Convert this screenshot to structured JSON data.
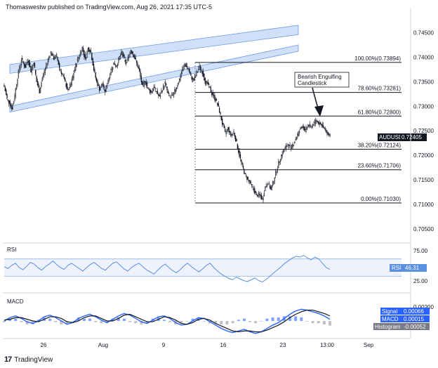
{
  "header": {
    "text": "Thomaswestw published on TradingView.com, Aug 26, 2021 17:35 UTC-5"
  },
  "footer": {
    "logo": "17",
    "brand": "TradingView"
  },
  "colors": {
    "candle": "#131722",
    "channel_fill": "#bbd3f5",
    "channel_line": "#6f9be6",
    "fib_line": "#131722",
    "rsi_line": "#5b8fe0",
    "rsi_band": "#a3bff0",
    "macd_line": "#2962ff",
    "signal_line": "#131722",
    "hist_pos": "#2962ff",
    "hist_neg": "#9598a1",
    "badge_dark": "#131722",
    "badge_blue": "#2962ff",
    "badge_gray": "#787b86"
  },
  "chart_data": {
    "type": "candlestick",
    "symbol": "AUDUSD",
    "last_price": "0.72405",
    "x_ticks": [
      "26",
      "Aug",
      "9",
      "16",
      "23",
      "13:00",
      "Sep"
    ],
    "y_ticks": [
      "0.74500",
      "0.74000",
      "0.73500",
      "0.73000",
      "0.72500",
      "0.72000",
      "0.71500",
      "0.71000",
      "0.70500"
    ],
    "ylim": [
      0.703,
      0.7485
    ],
    "close_path": [
      [
        0,
        0.734
      ],
      [
        3,
        0.7315
      ],
      [
        6,
        0.7305
      ],
      [
        8,
        0.7296
      ],
      [
        10,
        0.731
      ],
      [
        12,
        0.7335
      ],
      [
        15,
        0.737
      ],
      [
        18,
        0.7395
      ],
      [
        22,
        0.738
      ],
      [
        25,
        0.7395
      ],
      [
        28,
        0.7372
      ],
      [
        31,
        0.739
      ],
      [
        34,
        0.735
      ],
      [
        37,
        0.733
      ],
      [
        40,
        0.7358
      ],
      [
        43,
        0.7375
      ],
      [
        46,
        0.7395
      ],
      [
        49,
        0.741
      ],
      [
        52,
        0.7398
      ],
      [
        55,
        0.7402
      ],
      [
        58,
        0.7378
      ],
      [
        61,
        0.7365
      ],
      [
        64,
        0.7348
      ],
      [
        67,
        0.7332
      ],
      [
        70,
        0.7345
      ],
      [
        73,
        0.7368
      ],
      [
        76,
        0.739
      ],
      [
        79,
        0.7405
      ],
      [
        82,
        0.742
      ],
      [
        85,
        0.7395
      ],
      [
        88,
        0.7418
      ],
      [
        91,
        0.741
      ],
      [
        94,
        0.7375
      ],
      [
        97,
        0.735
      ],
      [
        100,
        0.7335
      ],
      [
        103,
        0.7345
      ],
      [
        106,
        0.733
      ],
      [
        109,
        0.7352
      ],
      [
        112,
        0.7372
      ],
      [
        115,
        0.7388
      ],
      [
        118,
        0.7382
      ],
      [
        121,
        0.74
      ],
      [
        124,
        0.741
      ],
      [
        127,
        0.7388
      ],
      [
        130,
        0.7398
      ],
      [
        133,
        0.7415
      ],
      [
        136,
        0.7403
      ],
      [
        139,
        0.7388
      ],
      [
        142,
        0.737
      ],
      [
        145,
        0.734
      ],
      [
        148,
        0.7352
      ],
      [
        151,
        0.7335
      ],
      [
        154,
        0.7328
      ],
      [
        157,
        0.734
      ],
      [
        160,
        0.733
      ],
      [
        163,
        0.7318
      ],
      [
        166,
        0.7335
      ],
      [
        169,
        0.7348
      ],
      [
        172,
        0.7325
      ],
      [
        175,
        0.7318
      ],
      [
        178,
        0.7326
      ],
      [
        181,
        0.734
      ],
      [
        184,
        0.7355
      ],
      [
        187,
        0.7375
      ],
      [
        190,
        0.7385
      ],
      [
        193,
        0.7378
      ],
      [
        196,
        0.736
      ],
      [
        199,
        0.7352
      ],
      [
        202,
        0.7368
      ],
      [
        205,
        0.738
      ],
      [
        208,
        0.737
      ],
      [
        211,
        0.735
      ],
      [
        214,
        0.7345
      ],
      [
        217,
        0.733
      ],
      [
        220,
        0.732
      ],
      [
        223,
        0.731
      ],
      [
        226,
        0.729
      ],
      [
        229,
        0.7265
      ],
      [
        232,
        0.7245
      ],
      [
        235,
        0.7255
      ],
      [
        238,
        0.724
      ],
      [
        241,
        0.7248
      ],
      [
        244,
        0.7225
      ],
      [
        247,
        0.72
      ],
      [
        250,
        0.7178
      ],
      [
        253,
        0.716
      ],
      [
        256,
        0.715
      ],
      [
        259,
        0.714
      ],
      [
        262,
        0.713
      ],
      [
        265,
        0.7118
      ],
      [
        268,
        0.712
      ],
      [
        271,
        0.711
      ],
      [
        274,
        0.7135
      ],
      [
        277,
        0.7145
      ],
      [
        280,
        0.713
      ],
      [
        283,
        0.715
      ],
      [
        286,
        0.717
      ],
      [
        289,
        0.719
      ],
      [
        292,
        0.7205
      ],
      [
        295,
        0.7215
      ],
      [
        298,
        0.7222
      ],
      [
        301,
        0.7215
      ],
      [
        304,
        0.7225
      ],
      [
        307,
        0.7238
      ],
      [
        310,
        0.725
      ],
      [
        313,
        0.726
      ],
      [
        316,
        0.725
      ],
      [
        319,
        0.7262
      ],
      [
        322,
        0.7258
      ],
      [
        325,
        0.7265
      ],
      [
        328,
        0.7272
      ],
      [
        331,
        0.7265
      ],
      [
        334,
        0.726
      ],
      [
        337,
        0.725
      ],
      [
        340,
        0.7245
      ],
      [
        342,
        0.724
      ]
    ],
    "channel_upper": {
      "lower_start": [
        0.7367,
        0.7385
      ],
      "lower_end": [
        0.7446,
        0.7465
      ],
      "start_x": 0,
      "end_x": 418
    },
    "channel_lower": {
      "lower_start": [
        0.7288,
        0.73
      ],
      "lower_end": [
        0.7412,
        0.7425
      ],
      "start_x": 0,
      "end_x": 418
    },
    "fib_levels": [
      {
        "label": "100.00%(0.73894)",
        "value": 0.73894
      },
      {
        "label": "78.60%(0.73281)",
        "value": 0.73281
      },
      {
        "label": "61.80%(0.72800)",
        "value": 0.728
      },
      {
        "label": "38.20%(0.72124)",
        "value": 0.72124
      },
      {
        "label": "23.60%(0.71706)",
        "value": 0.71706
      },
      {
        "label": "0.00%(0.71030)",
        "value": 0.7103
      }
    ],
    "annotation": {
      "line1": "Bearish Engulfing",
      "line2": "Candlestick"
    },
    "rsi": {
      "title": "RSI",
      "value_label": "RSI",
      "value": "46.31",
      "y_ticks": [
        "75.00",
        "25.00"
      ],
      "ylim": [
        0,
        100
      ],
      "band": [
        30,
        70
      ],
      "series": [
        52,
        48,
        55,
        60,
        50,
        45,
        53,
        62,
        58,
        50,
        44,
        52,
        58,
        65,
        57,
        50,
        46,
        55,
        60,
        54,
        48,
        42,
        50,
        57,
        62,
        55,
        48,
        44,
        52,
        60,
        63,
        55,
        47,
        42,
        50,
        56,
        60,
        52,
        45,
        40,
        35,
        44,
        52,
        58,
        50,
        43,
        38,
        45,
        54,
        60,
        52,
        46,
        40,
        47,
        55,
        60,
        50,
        42,
        35,
        30,
        25,
        22,
        28,
        24,
        20,
        18,
        22,
        26,
        20,
        17,
        23,
        30,
        38,
        45,
        52,
        60,
        66,
        72,
        76,
        74,
        78,
        72,
        68,
        74,
        70,
        60,
        50,
        46
      ]
    },
    "macd": {
      "title": "MACD",
      "badges": [
        {
          "name": "Signal",
          "value": "0.00066"
        },
        {
          "name": "MACD",
          "value": "0.00015"
        },
        {
          "name": "Histogram",
          "value": "-0.00052"
        }
      ],
      "y_tick_top": "0.00200",
      "macd_series": [
        0.0,
        0.4,
        0.6,
        0.3,
        -0.1,
        -0.3,
        0.0,
        0.5,
        0.7,
        0.4,
        0.0,
        -0.4,
        -0.2,
        0.3,
        0.6,
        0.8,
        0.5,
        0.1,
        -0.2,
        0.2,
        0.6,
        0.9,
        0.7,
        0.3,
        -0.1,
        -0.3,
        0.1,
        0.5,
        0.6,
        0.3,
        -0.2,
        -0.5,
        -0.4,
        0.0,
        0.4,
        0.3,
        -0.1,
        -0.5,
        -0.9,
        -1.2,
        -1.4,
        -1.2,
        -1.0,
        -1.3,
        -1.5,
        -1.3,
        -0.9,
        -0.5,
        -0.2,
        0.3,
        0.8,
        1.2,
        1.4,
        1.3,
        1.1,
        0.9,
        0.6,
        0.2
      ],
      "signal_series": [
        0.1,
        0.2,
        0.4,
        0.4,
        0.2,
        0.0,
        -0.1,
        0.2,
        0.5,
        0.5,
        0.3,
        -0.1,
        -0.2,
        0.0,
        0.4,
        0.6,
        0.6,
        0.3,
        0.0,
        0.0,
        0.3,
        0.7,
        0.8,
        0.5,
        0.2,
        -0.1,
        -0.1,
        0.2,
        0.5,
        0.4,
        0.1,
        -0.3,
        -0.4,
        -0.2,
        0.2,
        0.3,
        0.1,
        -0.3,
        -0.6,
        -0.9,
        -1.2,
        -1.3,
        -1.2,
        -1.2,
        -1.3,
        -1.3,
        -1.1,
        -0.8,
        -0.5,
        -0.1,
        0.4,
        0.8,
        1.1,
        1.3,
        1.3,
        1.1,
        0.9,
        0.6
      ]
    }
  }
}
